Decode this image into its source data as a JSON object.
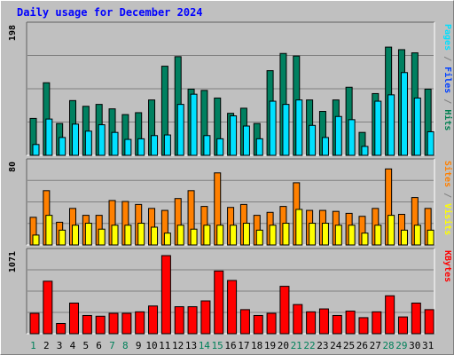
{
  "chart_data": [
    {
      "type": "bar",
      "title": "Daily usage for December 2024",
      "ylabel_parts": [
        {
          "text": "Pages",
          "color": "#00e0ff"
        },
        {
          "text": " / ",
          "color": "#808080"
        },
        {
          "text": "Files",
          "color": "#0040ff"
        },
        {
          "text": " / ",
          "color": "#808080"
        },
        {
          "text": "Hits",
          "color": "#007f50"
        }
      ],
      "ymax_label": "198",
      "ylim": [
        0,
        198
      ],
      "categories": [
        "1",
        "2",
        "3",
        "4",
        "5",
        "6",
        "7",
        "8",
        "9",
        "10",
        "11",
        "12",
        "13",
        "14",
        "15",
        "16",
        "17",
        "18",
        "19",
        "20",
        "21",
        "22",
        "23",
        "24",
        "25",
        "26",
        "27",
        "28",
        "29",
        "30",
        "31"
      ],
      "weekend_days": [
        "1",
        "7",
        "8",
        "14",
        "15",
        "21",
        "22",
        "28",
        "29"
      ],
      "series": [
        {
          "name": "Hits",
          "color": "#008060",
          "values": [
            58,
            114,
            50,
            86,
            77,
            80,
            73,
            64,
            67,
            87,
            140,
            155,
            104,
            102,
            90,
            66,
            74,
            50,
            133,
            160,
            156,
            87,
            69,
            87,
            107,
            36,
            97,
            170,
            166,
            161,
            104
          ]
        },
        {
          "name": "Files",
          "color": "#00e0ff",
          "values": [
            17,
            57,
            28,
            49,
            38,
            48,
            36,
            25,
            26,
            31,
            32,
            80,
            96,
            31,
            26,
            62,
            46,
            26,
            85,
            80,
            87,
            47,
            28,
            61,
            56,
            14,
            85,
            95,
            130,
            90,
            37
          ]
        }
      ]
    },
    {
      "type": "bar",
      "ylabel_parts": [
        {
          "text": "Sites",
          "color": "#ff8000"
        },
        {
          "text": " / ",
          "color": "#808080"
        },
        {
          "text": "Visits",
          "color": "#ffff00"
        }
      ],
      "ymax_label": "80",
      "ylim": [
        0,
        80
      ],
      "categories": [
        "1",
        "2",
        "3",
        "4",
        "5",
        "6",
        "7",
        "8",
        "9",
        "10",
        "11",
        "12",
        "13",
        "14",
        "15",
        "16",
        "17",
        "18",
        "19",
        "20",
        "21",
        "22",
        "23",
        "24",
        "25",
        "26",
        "27",
        "28",
        "29",
        "30",
        "31"
      ],
      "series": [
        {
          "name": "Sites",
          "color": "#ff8000",
          "values": [
            28,
            55,
            23,
            37,
            30,
            30,
            45,
            44,
            41,
            37,
            35,
            47,
            55,
            39,
            73,
            38,
            41,
            30,
            33,
            39,
            63,
            35,
            35,
            34,
            32,
            29,
            37,
            77,
            31,
            48,
            37
          ]
        },
        {
          "name": "Visits",
          "color": "#ffff00",
          "values": [
            10,
            30,
            15,
            20,
            22,
            16,
            20,
            20,
            22,
            18,
            12,
            20,
            16,
            20,
            20,
            20,
            22,
            15,
            20,
            22,
            36,
            22,
            22,
            20,
            20,
            12,
            20,
            30,
            15,
            20,
            15
          ]
        }
      ]
    },
    {
      "type": "bar",
      "ylabel_parts": [
        {
          "text": "KBytes",
          "color": "#ff0000"
        }
      ],
      "ymax_label": "1071",
      "ylim": [
        0,
        1071
      ],
      "categories": [
        "1",
        "2",
        "3",
        "4",
        "5",
        "6",
        "7",
        "8",
        "9",
        "10",
        "11",
        "12",
        "13",
        "14",
        "15",
        "16",
        "17",
        "18",
        "19",
        "20",
        "21",
        "22",
        "23",
        "24",
        "25",
        "26",
        "27",
        "28",
        "29",
        "30",
        "31"
      ],
      "series": [
        {
          "name": "KBytes",
          "color": "#ff0000",
          "values": [
            280,
            720,
            140,
            420,
            250,
            240,
            280,
            280,
            300,
            380,
            1071,
            370,
            370,
            450,
            860,
            730,
            330,
            250,
            280,
            650,
            400,
            300,
            340,
            250,
            310,
            220,
            300,
            520,
            230,
            420,
            330
          ]
        }
      ]
    }
  ]
}
